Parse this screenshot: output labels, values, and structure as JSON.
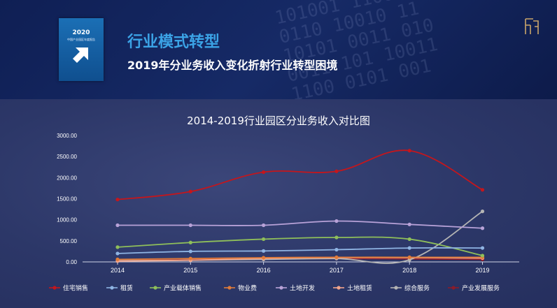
{
  "header": {
    "section_title": "行业模式转型",
    "subtitle": "2019年分业务收入变化折射行业转型困境",
    "cover": {
      "year": "2020",
      "subtitle": "中国产业园区年度报告"
    }
  },
  "chart_data": {
    "type": "line",
    "title": "2014-2019行业园区分业务收入对比图",
    "categories": [
      "2014",
      "2015",
      "2016",
      "2017",
      "2018",
      "2019"
    ],
    "y_ticks": [
      "0.00",
      "500.00",
      "1000.00",
      "1500.00",
      "2000.00",
      "2500.00",
      "3000.00"
    ],
    "ylim": [
      0,
      3000
    ],
    "grid": false,
    "legend_position": "bottom",
    "series": [
      {
        "name": "住宅销售",
        "color": "#c4161c",
        "values": [
          1480,
          1670,
          2130,
          2150,
          2640,
          1710
        ]
      },
      {
        "name": "租赁",
        "color": "#8fb4e3",
        "values": [
          200,
          250,
          260,
          290,
          330,
          330
        ]
      },
      {
        "name": "产业载体销售",
        "color": "#8fbf5a",
        "values": [
          350,
          460,
          540,
          580,
          540,
          150
        ]
      },
      {
        "name": "物业费",
        "color": "#e07b39",
        "values": [
          60,
          80,
          100,
          110,
          110,
          110
        ]
      },
      {
        "name": "土地开发",
        "color": "#b8a2d8",
        "values": [
          870,
          870,
          870,
          970,
          890,
          800
        ]
      },
      {
        "name": "土地租赁",
        "color": "#f2a58c",
        "values": [
          20,
          40,
          80,
          100,
          100,
          90
        ]
      },
      {
        "name": "综合服务",
        "color": "#b4b4b4",
        "values": [
          30,
          40,
          60,
          80,
          50,
          1200
        ]
      },
      {
        "name": "产业发展服务",
        "color": "#8b1c2a",
        "values": [
          50,
          60,
          70,
          80,
          70,
          60
        ]
      }
    ]
  }
}
